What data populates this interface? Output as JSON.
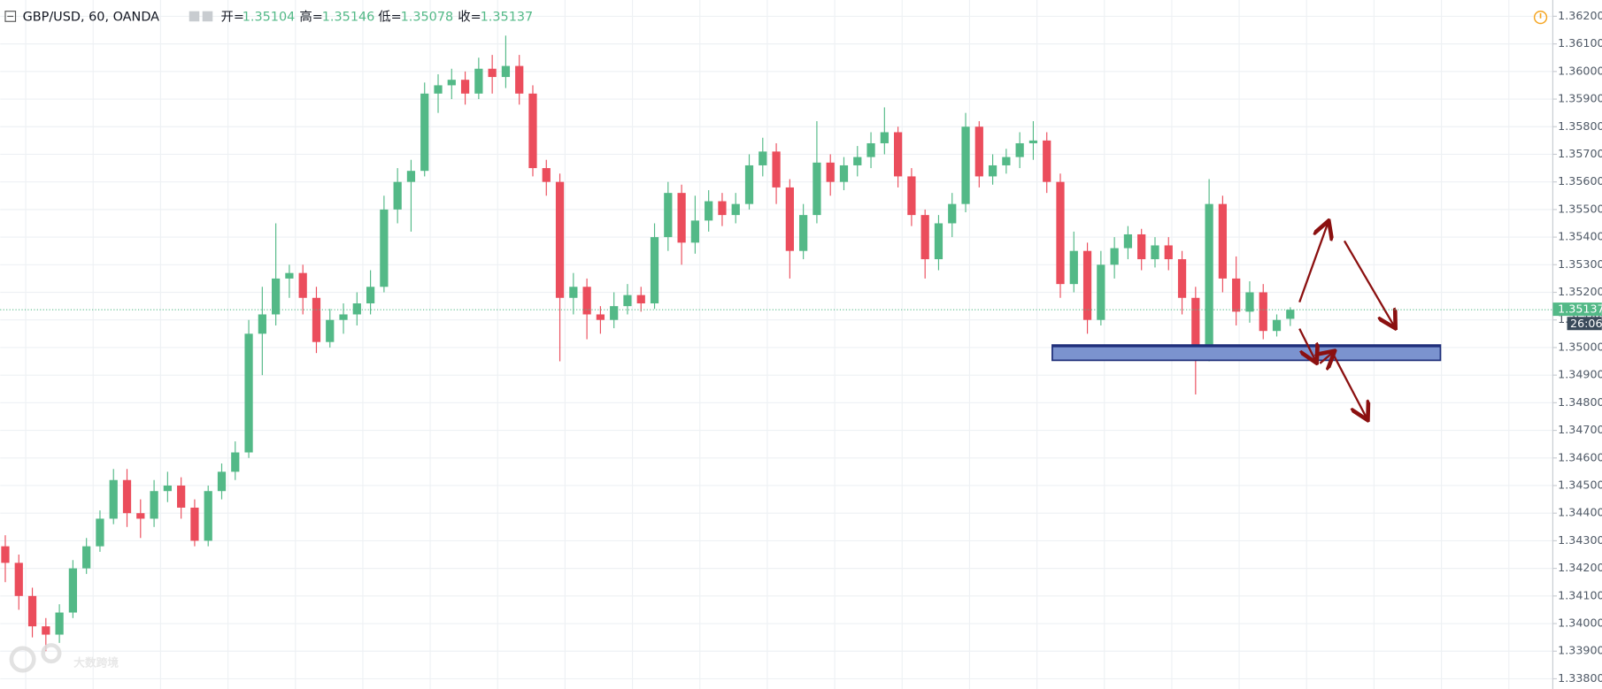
{
  "chart_data": {
    "type": "candlestick",
    "header": {
      "symbol": "GBP/USD, 60, OANDA",
      "open_label": "开=",
      "open": 1.35104,
      "high_label": "高=",
      "high": 1.35146,
      "low_label": "低=",
      "low": 1.35078,
      "close_label": "收=",
      "close": 1.35137
    },
    "open": [
      1.3428,
      1.3422,
      1.341,
      1.3399,
      1.3396,
      1.3404,
      1.342,
      1.3428,
      1.3438,
      1.3452,
      1.344,
      1.3438,
      1.3448,
      1.345,
      1.3442,
      1.343,
      1.3448,
      1.3455,
      1.3462,
      1.3505,
      1.3512,
      1.3525,
      1.3527,
      1.3518,
      1.3502,
      1.351,
      1.3512,
      1.3516,
      1.3522,
      1.355,
      1.356,
      1.3564,
      1.3592,
      1.3595,
      1.3597,
      1.3592,
      1.3601,
      1.3598,
      1.3602,
      1.3592,
      1.3565,
      1.356,
      1.3518,
      1.3522,
      1.3512,
      1.351,
      1.3515,
      1.3519,
      1.3516,
      1.354,
      1.3556,
      1.3538,
      1.3546,
      1.3553,
      1.3548,
      1.3552,
      1.3566,
      1.3571,
      1.3558,
      1.3535,
      1.3548,
      1.3567,
      1.356,
      1.3566,
      1.3569,
      1.3574,
      1.3578,
      1.3562,
      1.3548,
      1.3532,
      1.3545,
      1.3552,
      1.358,
      1.3562,
      1.3566,
      1.3569,
      1.3574,
      1.3575,
      1.356,
      1.3523,
      1.3535,
      1.351,
      1.353,
      1.3536,
      1.3541,
      1.3532,
      1.3537,
      1.3532,
      1.3518,
      1.3498,
      1.3552,
      1.3525,
      1.3513,
      1.352,
      1.3506,
      1.35104
    ],
    "high": [
      1.3432,
      1.3425,
      1.3413,
      1.3402,
      1.3407,
      1.3423,
      1.3431,
      1.3441,
      1.3456,
      1.3456,
      1.3445,
      1.3452,
      1.3455,
      1.3453,
      1.3445,
      1.345,
      1.3458,
      1.3466,
      1.351,
      1.3522,
      1.3545,
      1.353,
      1.353,
      1.3522,
      1.3514,
      1.3516,
      1.352,
      1.3528,
      1.3555,
      1.3565,
      1.3568,
      1.3596,
      1.3599,
      1.3601,
      1.36,
      1.3605,
      1.3606,
      1.3613,
      1.3606,
      1.3595,
      1.3568,
      1.3563,
      1.3527,
      1.3525,
      1.3515,
      1.352,
      1.3523,
      1.3522,
      1.3545,
      1.356,
      1.3559,
      1.3555,
      1.3557,
      1.3556,
      1.3556,
      1.357,
      1.3576,
      1.3574,
      1.3561,
      1.3552,
      1.3582,
      1.357,
      1.3569,
      1.3573,
      1.3578,
      1.3587,
      1.358,
      1.3565,
      1.355,
      1.3548,
      1.3556,
      1.3585,
      1.3582,
      1.357,
      1.3572,
      1.3578,
      1.3582,
      1.3578,
      1.3563,
      1.3542,
      1.3538,
      1.3535,
      1.354,
      1.3544,
      1.3543,
      1.354,
      1.354,
      1.3535,
      1.3522,
      1.3561,
      1.3555,
      1.3533,
      1.3524,
      1.3523,
      1.3512,
      1.35146
    ],
    "low": [
      1.3415,
      1.3405,
      1.3395,
      1.339,
      1.3393,
      1.3402,
      1.3418,
      1.3426,
      1.3436,
      1.3435,
      1.3431,
      1.3435,
      1.3444,
      1.3438,
      1.3428,
      1.3428,
      1.3445,
      1.3452,
      1.346,
      1.349,
      1.3508,
      1.3518,
      1.3512,
      1.3498,
      1.35,
      1.3505,
      1.3508,
      1.3512,
      1.352,
      1.3545,
      1.3542,
      1.3562,
      1.3585,
      1.359,
      1.3588,
      1.359,
      1.3592,
      1.3594,
      1.3588,
      1.3562,
      1.3555,
      1.3495,
      1.3512,
      1.3503,
      1.3505,
      1.3507,
      1.3512,
      1.3513,
      1.3514,
      1.3535,
      1.353,
      1.3534,
      1.3542,
      1.3544,
      1.3545,
      1.355,
      1.3562,
      1.3552,
      1.3525,
      1.3532,
      1.3545,
      1.3555,
      1.3557,
      1.3562,
      1.3565,
      1.357,
      1.3558,
      1.3544,
      1.3525,
      1.3528,
      1.354,
      1.3549,
      1.3558,
      1.3559,
      1.3563,
      1.3565,
      1.3568,
      1.3556,
      1.3518,
      1.352,
      1.3505,
      1.3508,
      1.3525,
      1.3532,
      1.3528,
      1.3529,
      1.3528,
      1.3512,
      1.3483,
      1.3495,
      1.352,
      1.3508,
      1.3509,
      1.3503,
      1.3504,
      1.35078
    ],
    "close": [
      1.3422,
      1.341,
      1.3399,
      1.3396,
      1.3404,
      1.342,
      1.3428,
      1.3438,
      1.3452,
      1.344,
      1.3438,
      1.3448,
      1.345,
      1.3442,
      1.343,
      1.3448,
      1.3455,
      1.3462,
      1.3505,
      1.3512,
      1.3525,
      1.3527,
      1.3518,
      1.3502,
      1.351,
      1.3512,
      1.3516,
      1.3522,
      1.355,
      1.356,
      1.3564,
      1.3592,
      1.3595,
      1.3597,
      1.3592,
      1.3601,
      1.3598,
      1.3602,
      1.3592,
      1.3565,
      1.356,
      1.3518,
      1.3522,
      1.3512,
      1.351,
      1.3515,
      1.3519,
      1.3516,
      1.354,
      1.3556,
      1.3538,
      1.3546,
      1.3553,
      1.3548,
      1.3552,
      1.3566,
      1.3571,
      1.3558,
      1.3535,
      1.3548,
      1.3567,
      1.356,
      1.3566,
      1.3569,
      1.3574,
      1.3578,
      1.3562,
      1.3548,
      1.3532,
      1.3545,
      1.3552,
      1.358,
      1.3562,
      1.3566,
      1.3569,
      1.3574,
      1.3575,
      1.356,
      1.3523,
      1.3535,
      1.351,
      1.353,
      1.3536,
      1.3541,
      1.3532,
      1.3537,
      1.3532,
      1.3518,
      1.3498,
      1.3552,
      1.3525,
      1.3513,
      1.352,
      1.3506,
      1.351,
      1.35137
    ],
    "up_color": "#53b987",
    "down_color": "#eb4d5c",
    "ylim": [
      1.33763,
      1.36259
    ],
    "yticks": [
      {
        "value": 1.338,
        "label": "1.33800"
      },
      {
        "value": 1.339,
        "label": "1.33900"
      },
      {
        "value": 1.34,
        "label": "1.34000"
      },
      {
        "value": 1.341,
        "label": "1.34100"
      },
      {
        "value": 1.342,
        "label": "1.34200"
      },
      {
        "value": 1.343,
        "label": "1.34300"
      },
      {
        "value": 1.344,
        "label": "1.34400"
      },
      {
        "value": 1.345,
        "label": "1.34500"
      },
      {
        "value": 1.346,
        "label": "1.34600"
      },
      {
        "value": 1.347,
        "label": "1.34700"
      },
      {
        "value": 1.348,
        "label": "1.34800"
      },
      {
        "value": 1.349,
        "label": "1.34900"
      },
      {
        "value": 1.35,
        "label": "1.35000"
      },
      {
        "value": 1.351,
        "label": "1.35100"
      },
      {
        "value": 1.352,
        "label": "1.35200"
      },
      {
        "value": 1.353,
        "label": "1.35300"
      },
      {
        "value": 1.354,
        "label": "1.35400"
      },
      {
        "value": 1.355,
        "label": "1.35500"
      },
      {
        "value": 1.356,
        "label": "1.35600"
      },
      {
        "value": 1.357,
        "label": "1.35700"
      },
      {
        "value": 1.358,
        "label": "1.35800"
      },
      {
        "value": 1.359,
        "label": "1.35900"
      },
      {
        "value": 1.36,
        "label": "1.36000"
      },
      {
        "value": 1.361,
        "label": "1.36100"
      },
      {
        "value": 1.362,
        "label": "1.36200"
      }
    ],
    "grid": true,
    "last_price": 1.35137,
    "last_price_color": "#53b987",
    "countdown": "26:06",
    "watermark": "大数跨境"
  }
}
